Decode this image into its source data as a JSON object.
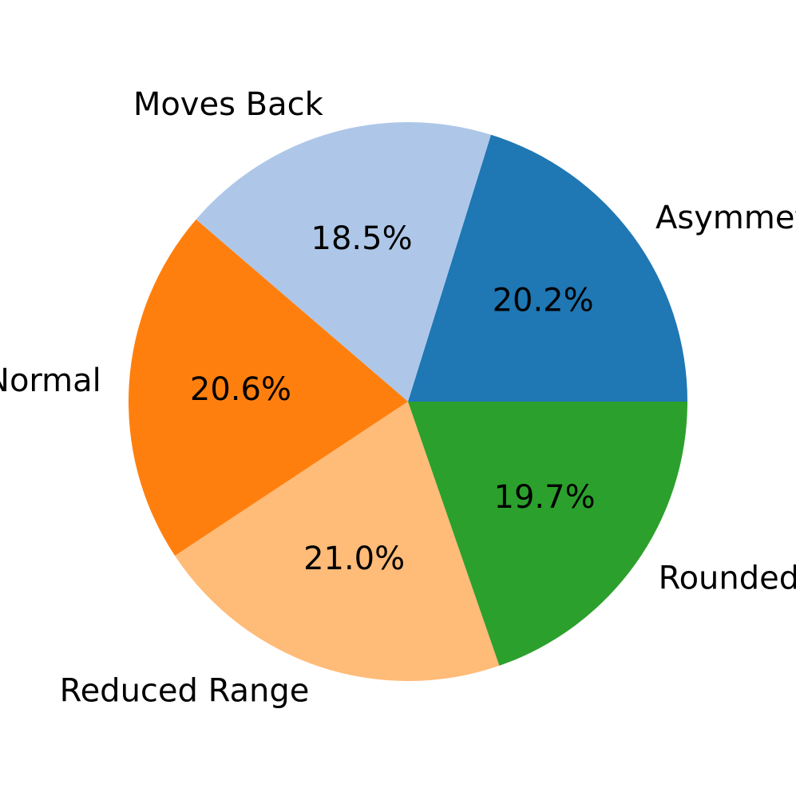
{
  "chart_data": {
    "type": "pie",
    "categories": [
      "Asymmetrical",
      "Moves Back",
      "Normal",
      "Reduced Range",
      "Rounded Back"
    ],
    "values": [
      20.2,
      18.5,
      20.6,
      21.0,
      19.7
    ],
    "value_labels": [
      "20.2%",
      "18.5%",
      "20.6%",
      "21.0%",
      "19.7%"
    ],
    "colors": [
      "#1f77b4",
      "#aec7e8",
      "#ff7f0e",
      "#ffbb78",
      "#2ca02c"
    ]
  }
}
